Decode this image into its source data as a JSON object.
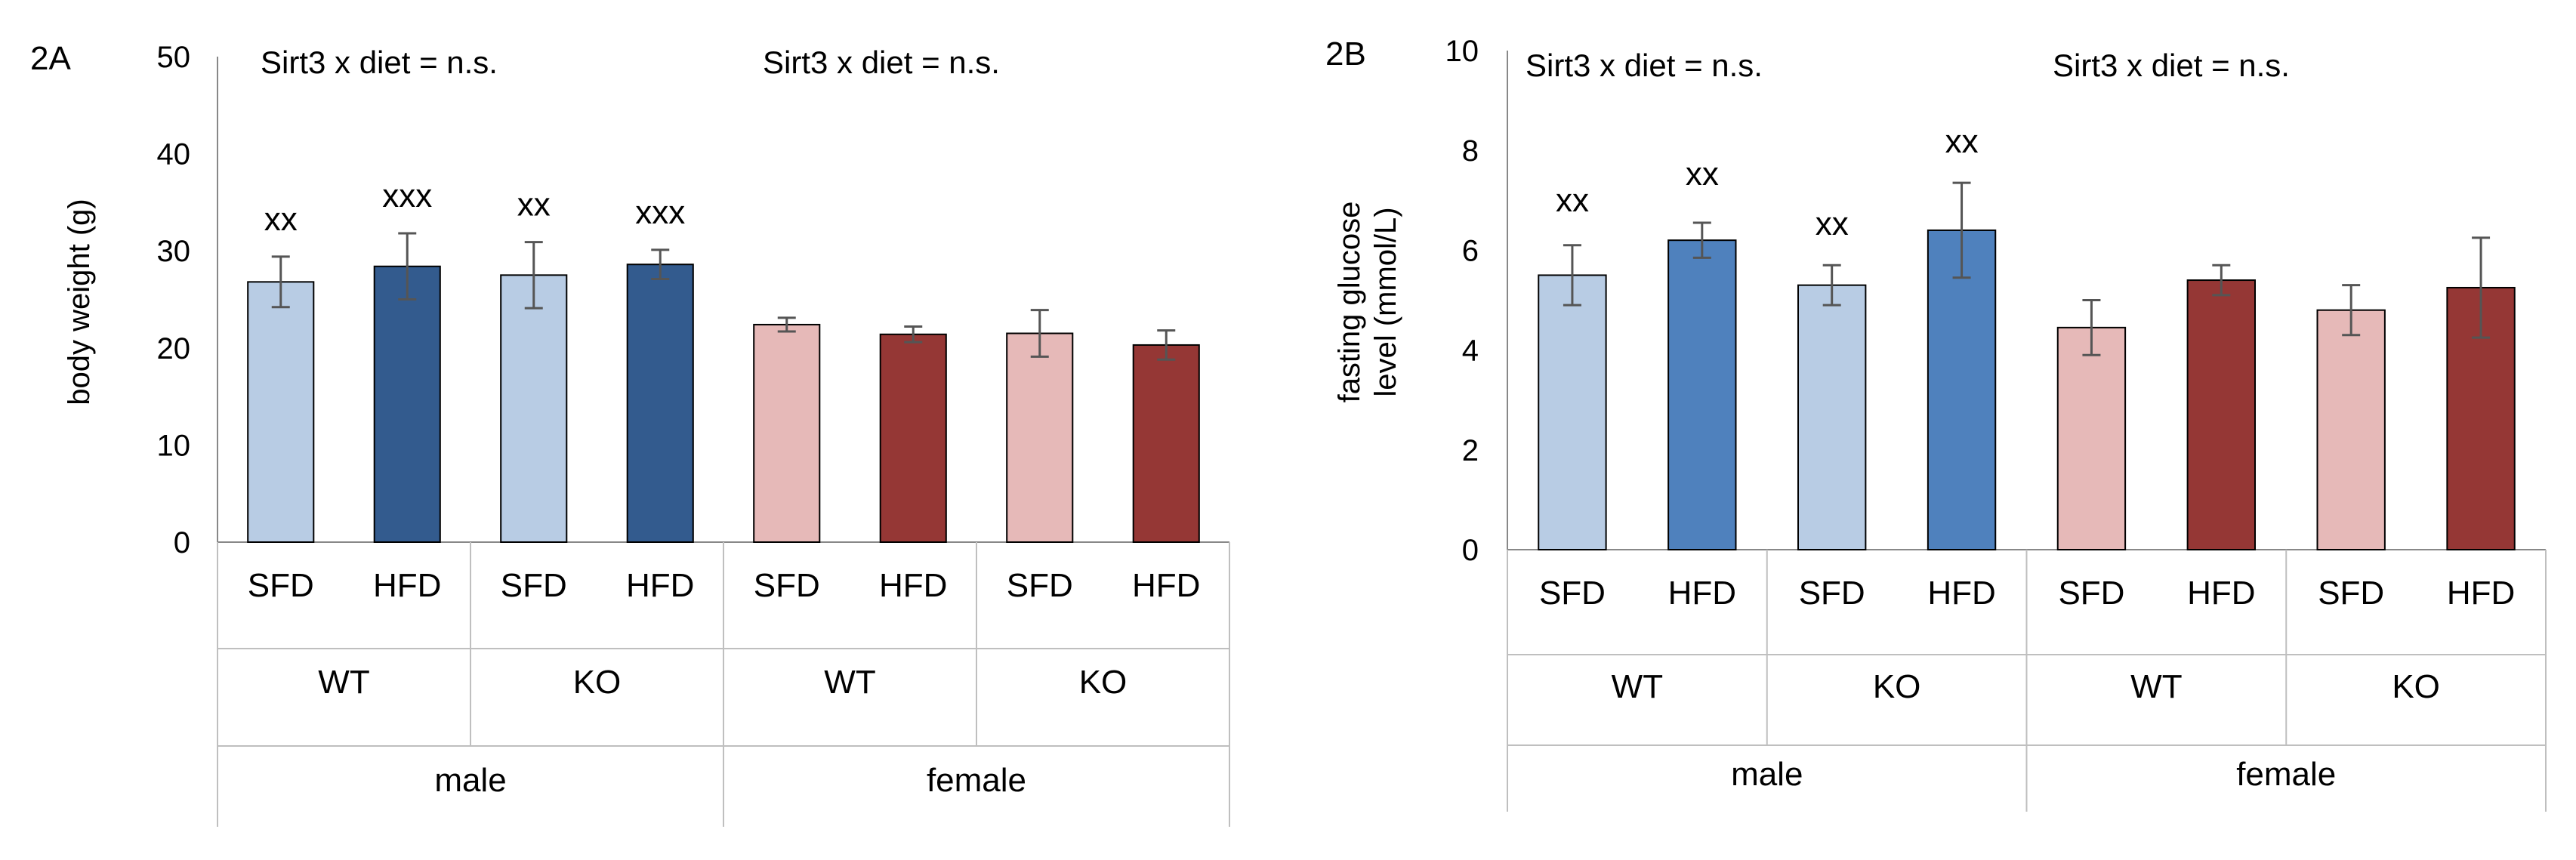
{
  "colors": {
    "male_sfd": "#b8cce4",
    "male_hfd_a": "#335b8e",
    "male_hfd_b": "#4f81bd",
    "female_sfd": "#e6b9b8",
    "female_hfd": "#953735"
  },
  "chart_data": [
    {
      "type": "bar",
      "panel_label": "2A",
      "ylabel": "body weight (g)",
      "ylim": [
        0,
        50
      ],
      "yticks": [
        "0",
        "10",
        "20",
        "30",
        "40",
        "50"
      ],
      "categories": [
        "SFD",
        "HFD",
        "SFD",
        "HFD",
        "SFD",
        "HFD",
        "SFD",
        "HFD"
      ],
      "genotypes": [
        "WT",
        "KO",
        "WT",
        "KO"
      ],
      "sexes": [
        "male",
        "female"
      ],
      "values": [
        26.8,
        28.4,
        27.5,
        28.6,
        22.4,
        21.4,
        21.5,
        20.3
      ],
      "errors": [
        2.6,
        3.4,
        3.4,
        1.5,
        0.7,
        0.8,
        2.4,
        1.5
      ],
      "significance": [
        "xx",
        "xxx",
        "xx",
        "xxx",
        "",
        "",
        "",
        ""
      ],
      "annotations": [
        "Sirt3 x diet = n.s.",
        "Sirt3 x diet = n.s."
      ]
    },
    {
      "type": "bar",
      "panel_label": "2B",
      "ylabel_lines": [
        "fasting glucose",
        "level (mmol/L)"
      ],
      "ylim": [
        0,
        10
      ],
      "yticks": [
        "0",
        "2",
        "4",
        "6",
        "8",
        "10"
      ],
      "categories": [
        "SFD",
        "HFD",
        "SFD",
        "HFD",
        "SFD",
        "HFD",
        "SFD",
        "HFD"
      ],
      "genotypes": [
        "WT",
        "KO",
        "WT",
        "KO"
      ],
      "sexes": [
        "male",
        "female"
      ],
      "values": [
        5.5,
        6.2,
        5.3,
        6.4,
        4.45,
        5.4,
        4.8,
        5.25
      ],
      "errors": [
        0.6,
        0.35,
        0.4,
        0.95,
        0.55,
        0.3,
        0.5,
        1.0
      ],
      "significance": [
        "xx",
        "xx",
        "xx",
        "xx",
        "",
        "",
        "",
        ""
      ],
      "annotations": [
        "Sirt3 x diet = n.s.",
        "Sirt3 x diet = n.s."
      ]
    }
  ]
}
